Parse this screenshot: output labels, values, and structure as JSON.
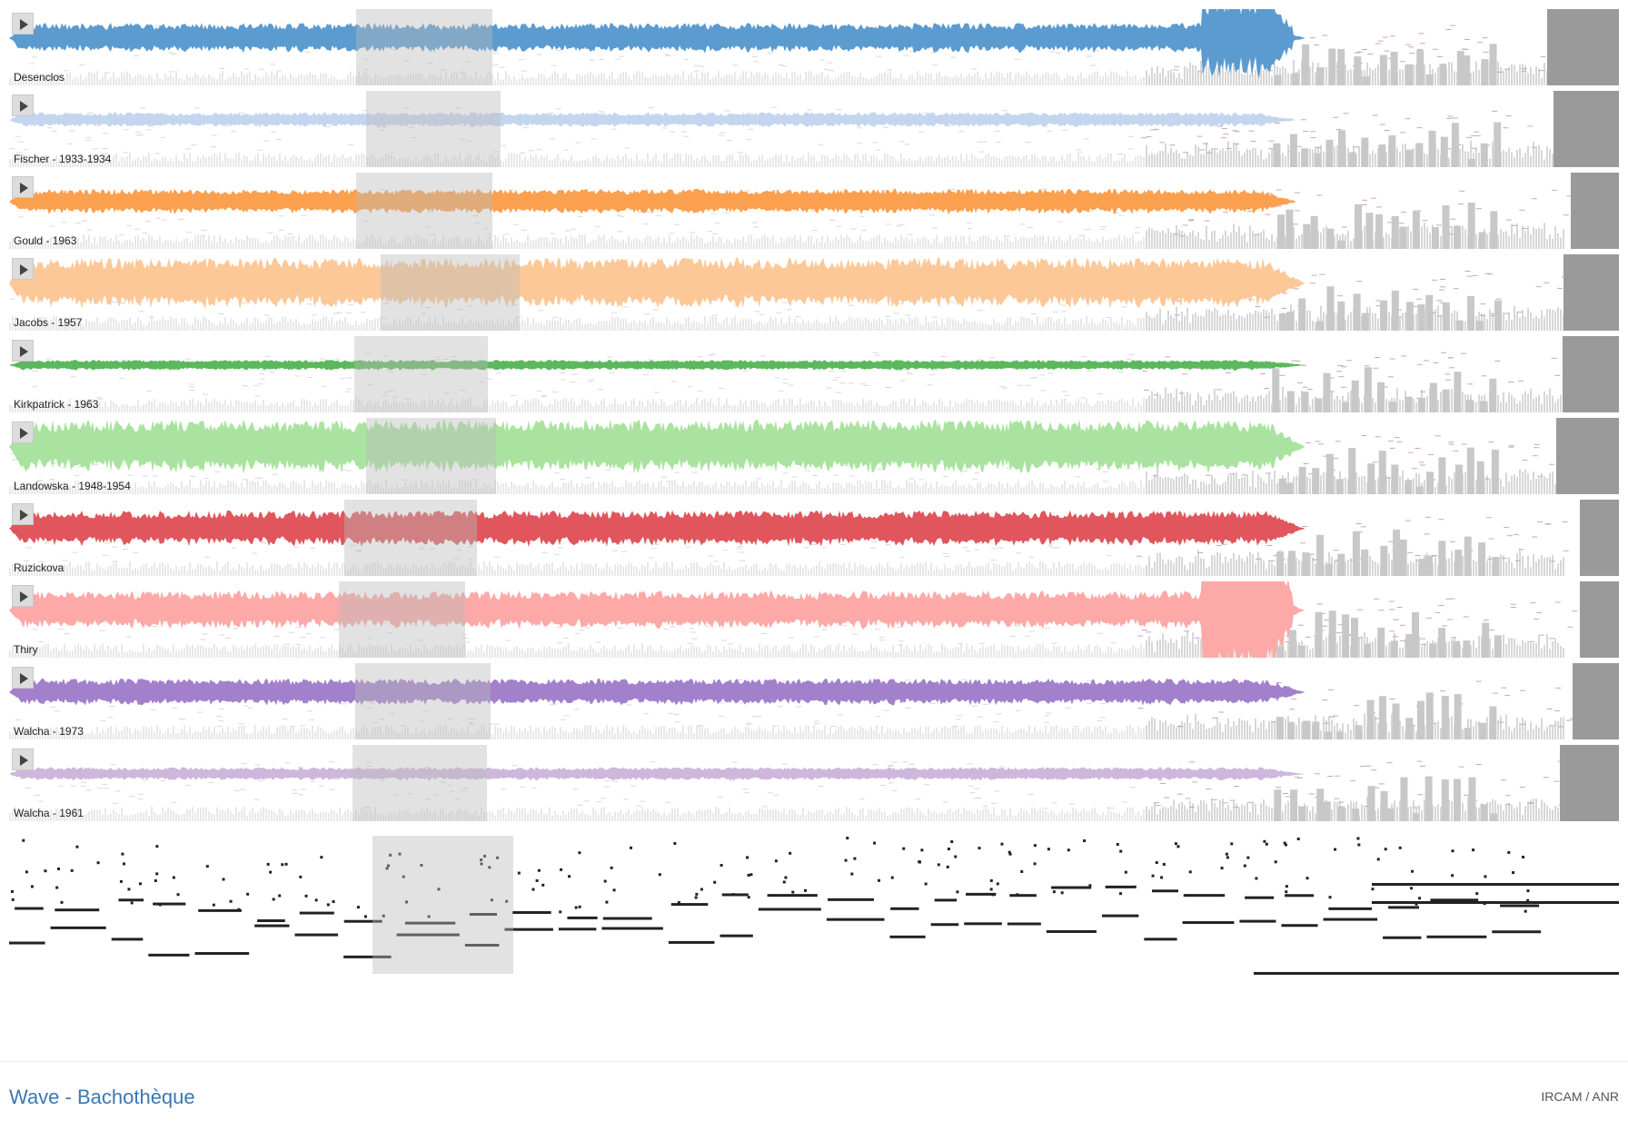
{
  "app": {
    "title": "Wave - Bachothèque",
    "credits": "IRCAM / ANR"
  },
  "tracks": [
    {
      "label": "Desenclos",
      "color": "#5b9bd0",
      "amp": 0.2,
      "end": 0.805,
      "seed": 11,
      "burst": 0.03
    },
    {
      "label": "Fischer - 1933-1934",
      "color": "#c4d6ef",
      "amp": 0.1,
      "end": 0.8,
      "seed": 23,
      "burst": 0
    },
    {
      "label": "Gould - 1963",
      "color": "#fba04f",
      "amp": 0.17,
      "end": 0.8,
      "seed": 37,
      "burst": 0
    },
    {
      "label": "Jacobs - 1957",
      "color": "#fcc898",
      "amp": 0.34,
      "end": 0.805,
      "seed": 41,
      "burst": 0
    },
    {
      "label": "Kirkpatrick - 1963",
      "color": "#5cb85c",
      "amp": 0.07,
      "end": 0.805,
      "seed": 53,
      "burst": 0
    },
    {
      "label": "Landowska - 1948-1954",
      "color": "#a9e39f",
      "amp": 0.36,
      "end": 0.805,
      "seed": 67,
      "burst": 0
    },
    {
      "label": "Ruzickova",
      "color": "#e0565c",
      "amp": 0.24,
      "end": 0.805,
      "seed": 71,
      "burst": 0
    },
    {
      "label": "Thiry",
      "color": "#fca9a8",
      "amp": 0.26,
      "end": 0.805,
      "seed": 83,
      "burst": 0.05
    },
    {
      "label": "Walcha - 1973",
      "color": "#a380cc",
      "amp": 0.18,
      "end": 0.805,
      "seed": 97,
      "burst": 0
    },
    {
      "label": "Walcha - 1961",
      "color": "#cdb8dc",
      "amp": 0.09,
      "end": 0.805,
      "seed": 101,
      "burst": 0
    }
  ]
}
